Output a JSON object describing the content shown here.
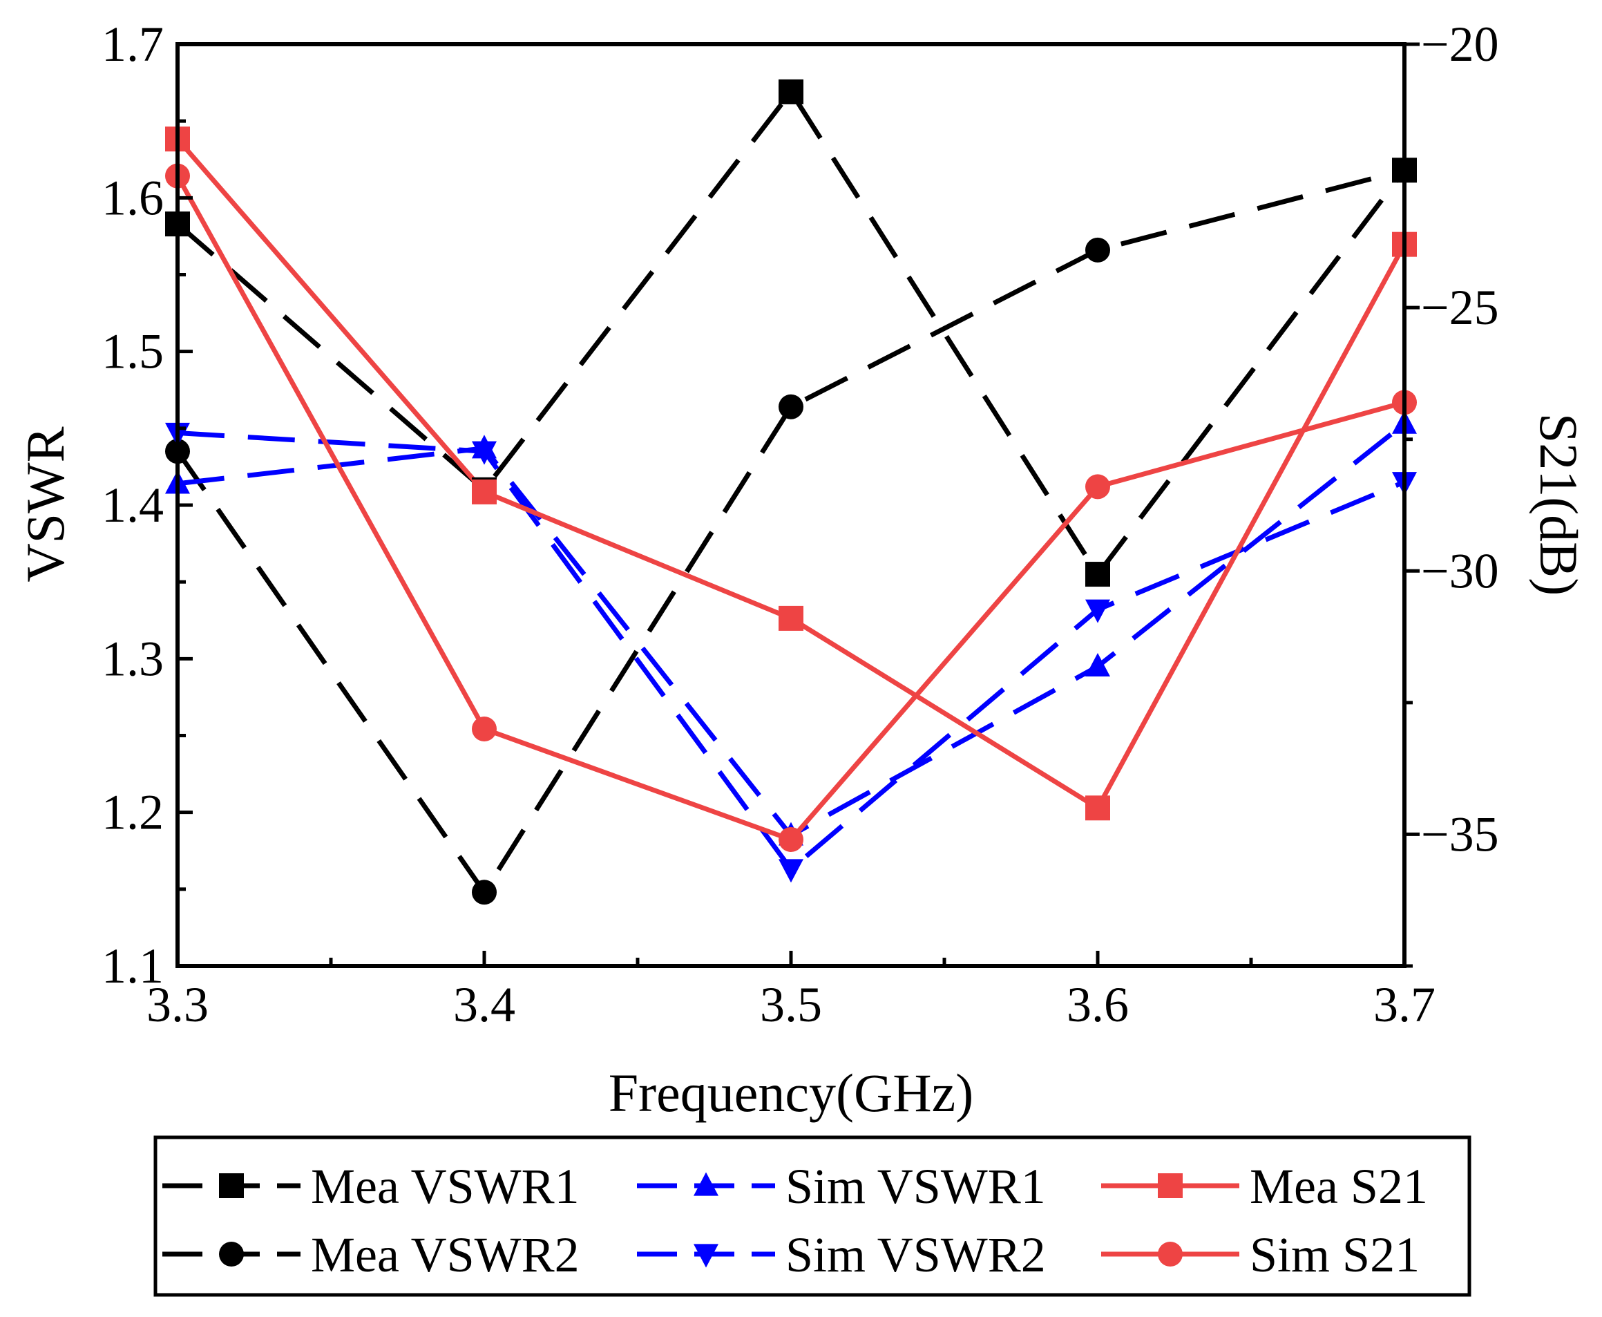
{
  "chart_data": {
    "type": "line",
    "x": [
      3.3,
      3.4,
      3.5,
      3.6,
      3.7
    ],
    "xlabel": "Frequency(GHz)",
    "ylabel": "VSWR",
    "y2label": "S21(dB)",
    "xlim": [
      3.3,
      3.7
    ],
    "ylim": [
      1.1,
      1.7
    ],
    "y2lim": [
      -37.5,
      -20
    ],
    "xticks": [
      "3.3",
      "3.4",
      "3.5",
      "3.6",
      "3.7"
    ],
    "yticks": [
      "1.1",
      "1.2",
      "1.3",
      "1.4",
      "1.5",
      "1.6",
      "1.7"
    ],
    "y2ticks": [
      "-35",
      "-30",
      "-25",
      "-20"
    ],
    "grid": false,
    "legend_position": "bottom",
    "series": [
      {
        "name": "Mea VSWR1",
        "axis": "left",
        "values": [
          1.583,
          1.41,
          1.669,
          1.355,
          1.618
        ],
        "color": "#000000",
        "marker": "square",
        "dash": "dashed"
      },
      {
        "name": "Sim VSWR1",
        "axis": "left",
        "values": [
          1.414,
          1.437,
          1.185,
          1.295,
          1.453
        ],
        "color": "#0000ff",
        "marker": "triangle-up",
        "dash": "dashed"
      },
      {
        "name": "Mea S21",
        "axis": "right",
        "values": [
          -21.8,
          -28.5,
          -30.9,
          -34.5,
          -23.8
        ],
        "color": "#ee4444",
        "marker": "square",
        "dash": "solid"
      },
      {
        "name": "Mea VSWR2",
        "axis": "left",
        "values": [
          1.435,
          1.148,
          1.464,
          1.566,
          1.618
        ],
        "color": "#000000",
        "marker": "circle",
        "dash": "dashed"
      },
      {
        "name": "Sim VSWR2",
        "axis": "left",
        "values": [
          1.447,
          1.435,
          1.163,
          1.332,
          1.415
        ],
        "color": "#0000ff",
        "marker": "triangle-down",
        "dash": "dashed"
      },
      {
        "name": "Sim S21",
        "axis": "right",
        "values": [
          -22.5,
          -33.0,
          -35.1,
          -28.4,
          -26.8
        ],
        "color": "#ee4444",
        "marker": "circle",
        "dash": "solid"
      }
    ]
  }
}
